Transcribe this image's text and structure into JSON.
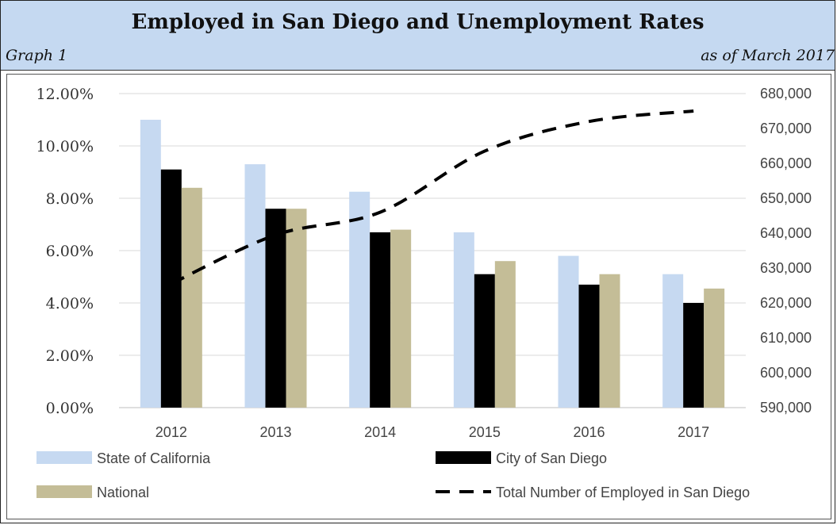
{
  "header": {
    "title": "Employed in San Diego and Unemployment Rates",
    "graph_label": "Graph 1",
    "as_of": "as of March 2017"
  },
  "colors": {
    "header_bg": "#c5d9f1",
    "california": "#c6d9f1",
    "san_diego": "#000000",
    "national": "#c4bd97",
    "employed_line": "#000000"
  },
  "chart_data": {
    "type": "bar",
    "categories": [
      "2012",
      "2013",
      "2014",
      "2015",
      "2016",
      "2017"
    ],
    "series": [
      {
        "name": "State of California",
        "values": [
          11.0,
          9.3,
          8.25,
          6.7,
          5.8,
          5.1
        ],
        "axis": "left",
        "color": "#c6d9f1"
      },
      {
        "name": "City of San Diego",
        "values": [
          9.1,
          7.6,
          6.7,
          5.1,
          4.7,
          4.0
        ],
        "axis": "left",
        "color": "#000000"
      },
      {
        "name": "National",
        "values": [
          8.4,
          7.6,
          6.8,
          5.6,
          5.1,
          4.55
        ],
        "axis": "left",
        "color": "#c4bd97"
      },
      {
        "name": "Total Number of Employed in San Diego",
        "type": "line",
        "style": "dashed",
        "values": [
          625500,
          639500,
          646000,
          663500,
          672000,
          675000
        ],
        "axis": "right",
        "color": "#000000"
      }
    ],
    "y_left": {
      "ylim": [
        0,
        12
      ],
      "ticks": [
        "0.00%",
        "2.00%",
        "4.00%",
        "6.00%",
        "8.00%",
        "10.00%",
        "12.00%"
      ]
    },
    "y_right": {
      "ylim": [
        590000,
        680000
      ],
      "ticks": [
        "590,000",
        "600,000",
        "610,000",
        "620,000",
        "630,000",
        "640,000",
        "650,000",
        "660,000",
        "670,000",
        "680,000"
      ]
    },
    "grid": true,
    "legend_position": "bottom"
  }
}
